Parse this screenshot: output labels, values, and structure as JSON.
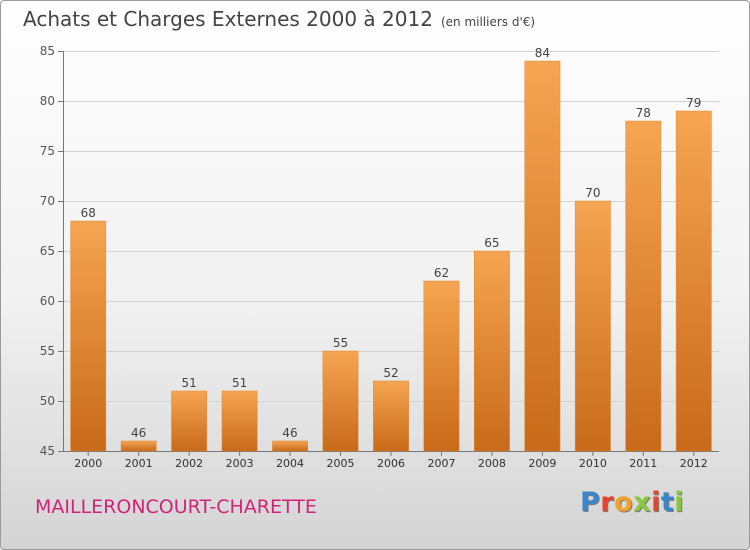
{
  "chart_data": {
    "type": "bar",
    "title": "Achats et Charges Externes 2000 à 2012",
    "subtitle": "(en milliers d'€)",
    "categories": [
      "2000",
      "2001",
      "2002",
      "2003",
      "2004",
      "2005",
      "2006",
      "2007",
      "2008",
      "2009",
      "2010",
      "2011",
      "2012"
    ],
    "values": [
      68,
      46,
      51,
      51,
      46,
      55,
      52,
      62,
      65,
      84,
      70,
      78,
      79
    ],
    "ylim": [
      45,
      85
    ],
    "yticks": [
      45,
      50,
      55,
      60,
      65,
      70,
      75,
      80,
      85
    ],
    "grid": true,
    "legend": "none",
    "bar_color_top": "#f6a552",
    "bar_color_bottom": "#c86a19"
  },
  "footer": {
    "commune": "MAILLERONCOURT-CHARETTE",
    "brand_letters": [
      "P",
      "r",
      "o",
      "x",
      "i",
      "t",
      "i"
    ],
    "brand_colors": [
      "#3a86c8",
      "#e6442b",
      "#f2a22b",
      "#8cc63e",
      "#e6442b",
      "#3a86c8",
      "#8cc63e"
    ],
    "commune_color": "#d1237a"
  }
}
